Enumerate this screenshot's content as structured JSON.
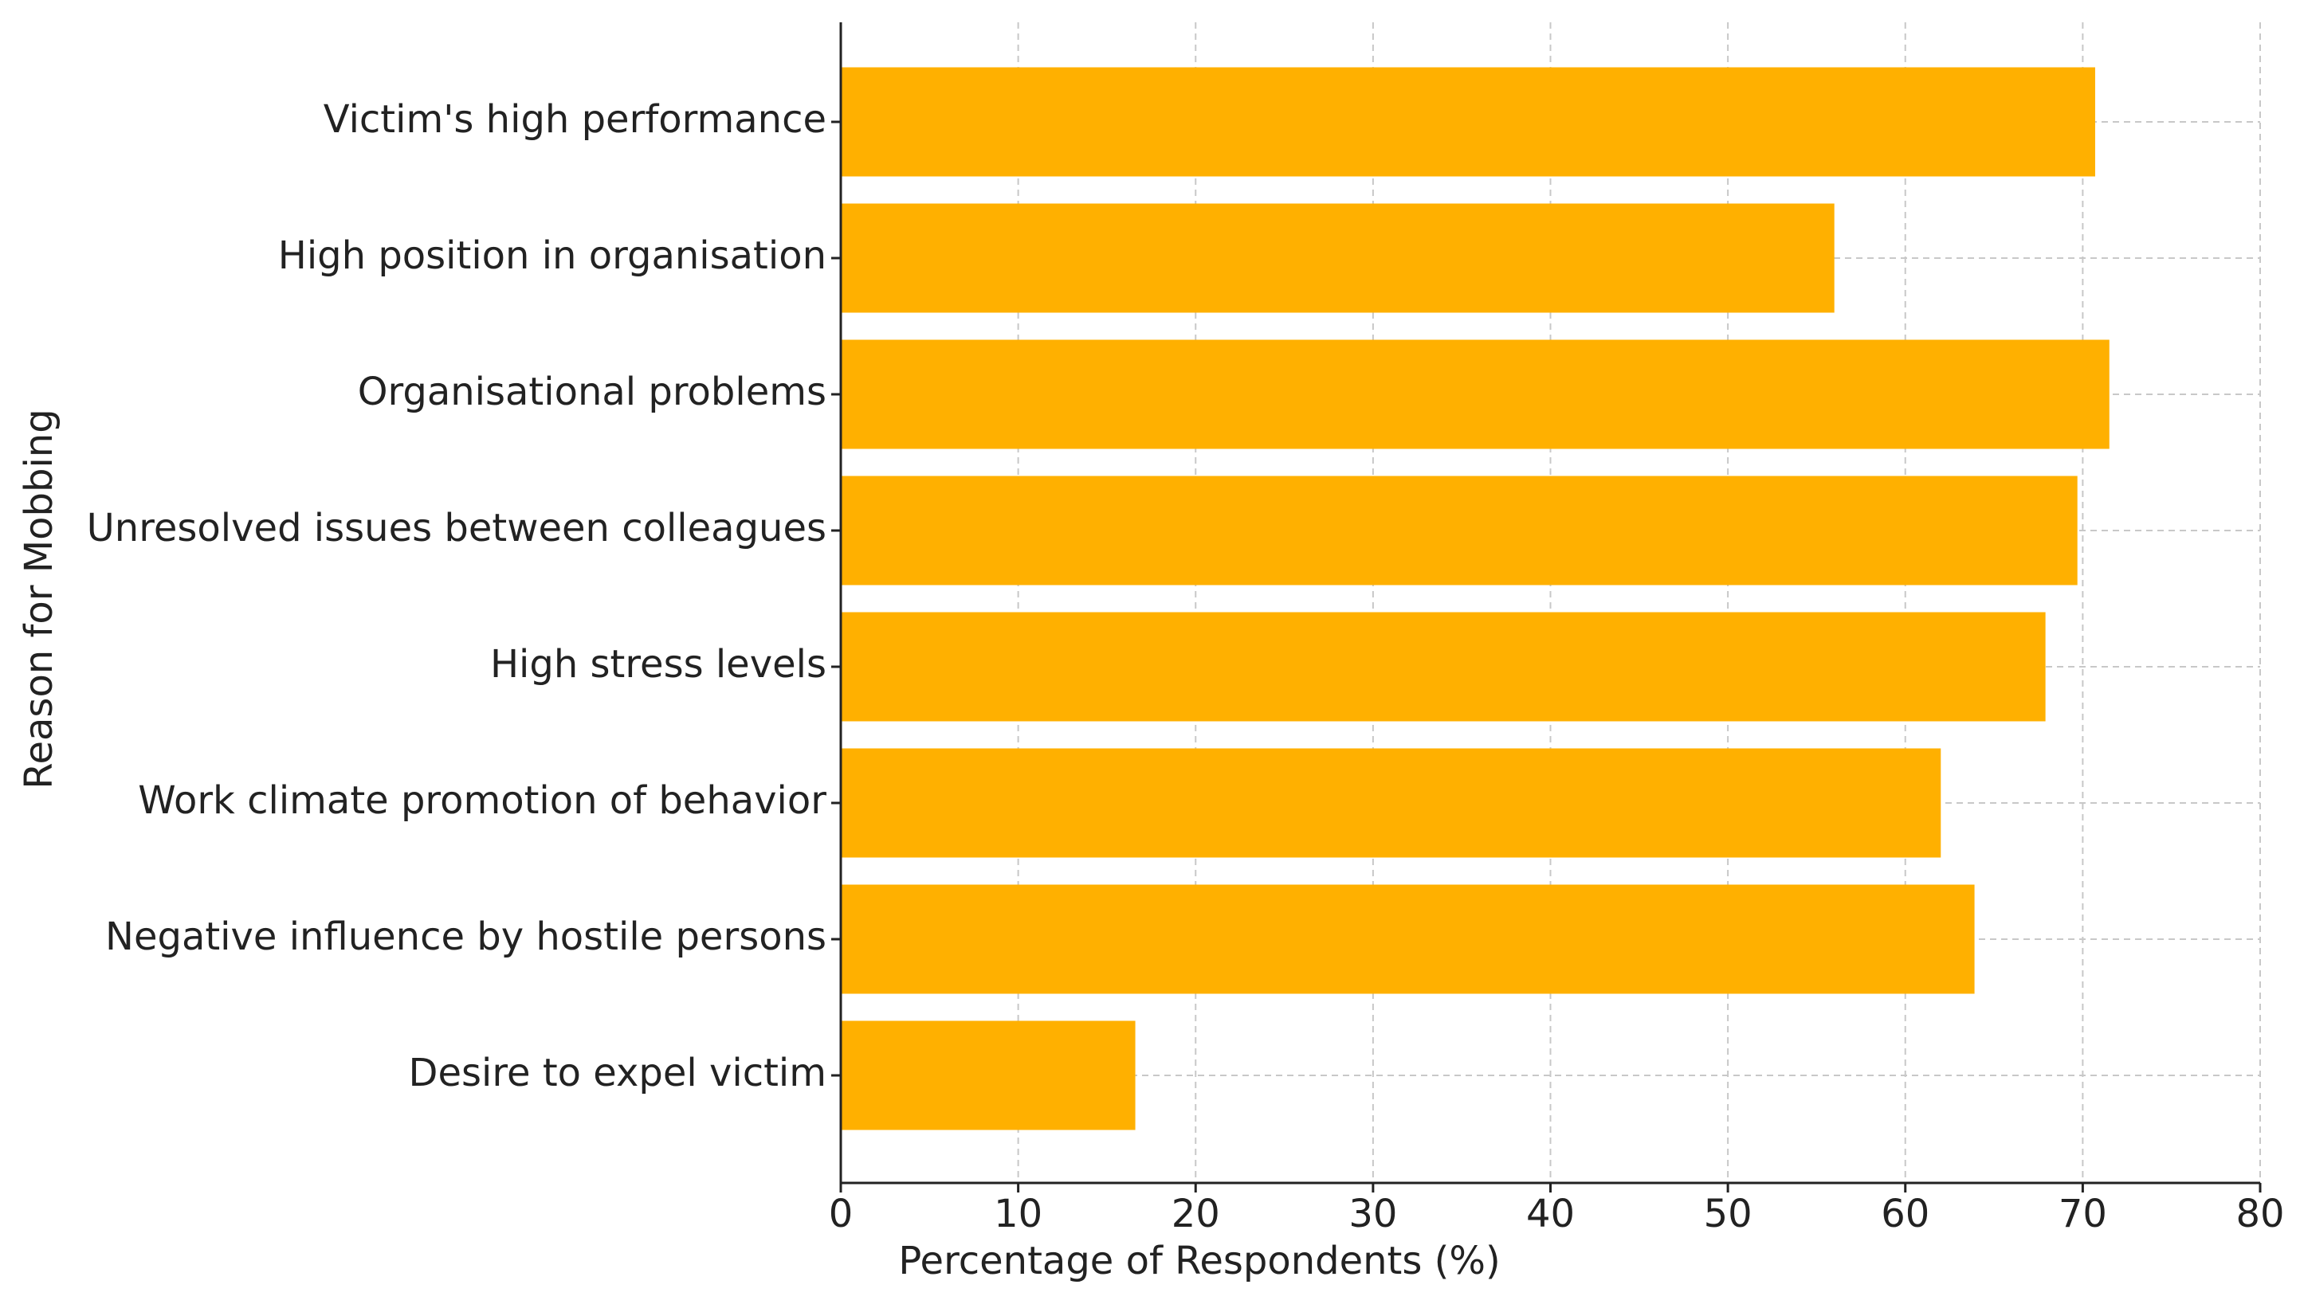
{
  "chart_data": {
    "type": "barh",
    "categories": [
      "Victim's high performance",
      "High position in organisation",
      "Organisational problems",
      "Unresolved issues between colleagues",
      "High stress levels",
      "Work climate promotion of behavior",
      "Negative influence by hostile persons",
      "Desire to expel victim"
    ],
    "values": [
      70.7,
      56.0,
      71.5,
      69.7,
      67.9,
      62.0,
      63.9,
      16.6
    ],
    "color": "#ffb000",
    "x_label": "Percentage of Respondents (%)",
    "y_label": "Reason for Mobbing",
    "xlim": [
      0,
      80
    ],
    "xticks": [
      0,
      10,
      20,
      30,
      40,
      50,
      60,
      70,
      80
    ],
    "grid": true
  }
}
